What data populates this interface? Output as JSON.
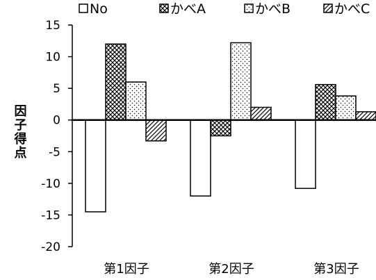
{
  "chart_data": {
    "type": "bar",
    "title": "",
    "xlabel": "",
    "ylabel": "因子得点",
    "ylim": [
      -20,
      15
    ],
    "yticks": [
      "15",
      "10",
      "5",
      "0",
      "-5",
      "-10",
      "-15",
      "-20"
    ],
    "ytick_values": [
      15,
      10,
      5,
      0,
      -5,
      -10,
      -15,
      -20
    ],
    "categories": [
      "第1因子",
      "第2因子",
      "第3因子"
    ],
    "legend_position": "top",
    "grid": false,
    "series": [
      {
        "name": "No",
        "pattern": "blank",
        "values": [
          -14.5,
          -12,
          -10.8
        ]
      },
      {
        "name": "かべA",
        "pattern": "crosshatch",
        "values": [
          12,
          -2.5,
          5.6
        ]
      },
      {
        "name": "かべB",
        "pattern": "dots",
        "values": [
          6,
          12.2,
          3.8
        ]
      },
      {
        "name": "かべC",
        "pattern": "diagonal",
        "values": [
          -3.3,
          2,
          1.3
        ]
      }
    ]
  }
}
